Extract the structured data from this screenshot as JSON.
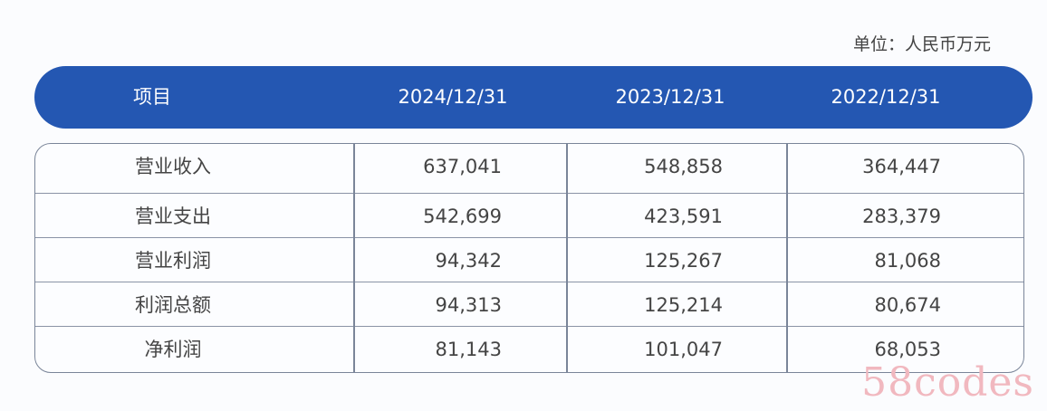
{
  "unit_label": "单位：人民币万元",
  "header": [
    "项目",
    "2024/12/31",
    "2023/12/31",
    "2022/12/31"
  ],
  "rows": [
    {
      "item": "营业收入",
      "v2024": "637,041",
      "v2023": "548,858",
      "v2022": "364,447"
    },
    {
      "item": "营业支出",
      "v2024": "542,699",
      "v2023": "423,591",
      "v2022": "283,379"
    },
    {
      "item": "营业利润",
      "v2024": "94,342",
      "v2023": "125,267",
      "v2022": "81,068"
    },
    {
      "item": "利润总额",
      "v2024": "94,313",
      "v2023": "125,214",
      "v2022": "80,674"
    },
    {
      "item": "净利润",
      "v2024": "81,143",
      "v2023": "101,047",
      "v2022": "68,053"
    }
  ],
  "watermark": "58codes",
  "colors": {
    "header_bg": "#2457b2",
    "watermark": "#f1b8bf"
  }
}
